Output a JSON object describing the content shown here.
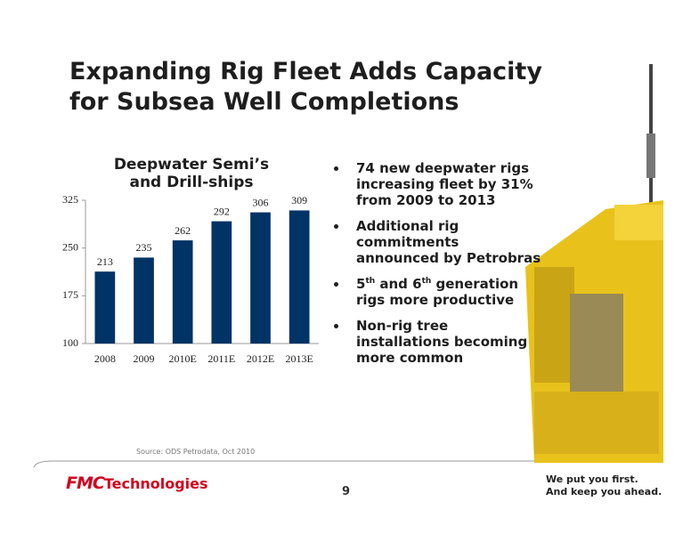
{
  "slide": {
    "title": "Expanding Rig Fleet Adds Capacity for Subsea Well Completions",
    "bullets": [
      {
        "runs": [
          {
            "text": "74 new deepwater rigs increasing fleet by 31% from 2009 to 2013"
          }
        ]
      },
      {
        "runs": [
          {
            "text": "Additional rig commitments announced by Petrobras"
          }
        ]
      },
      {
        "runs": [
          {
            "text": "5"
          },
          {
            "text": "th",
            "sup": true
          },
          {
            "text": " and 6"
          },
          {
            "text": "th",
            "sup": true
          },
          {
            "text": " generation rigs more productive"
          }
        ]
      },
      {
        "runs": [
          {
            "text": "Non-rig tree installations becoming more common"
          }
        ]
      }
    ],
    "source": "Source:  ODS Petrodata, Oct 2010",
    "logo": {
      "mark": "FMC",
      "name": "Technologies"
    },
    "page_number": "9",
    "tagline": [
      "We put you first.",
      "And keep you ahead."
    ]
  },
  "chart_data": {
    "type": "bar",
    "title": "Deepwater Semi’s and Drill-ships",
    "categories": [
      "2008",
      "2009",
      "2010E",
      "2011E",
      "2012E",
      "2013E"
    ],
    "values": [
      213,
      235,
      262,
      292,
      306,
      309
    ],
    "color": "#003366",
    "ylim": [
      100,
      325
    ],
    "yticks": [
      100,
      175,
      250,
      325
    ],
    "grid": false
  }
}
